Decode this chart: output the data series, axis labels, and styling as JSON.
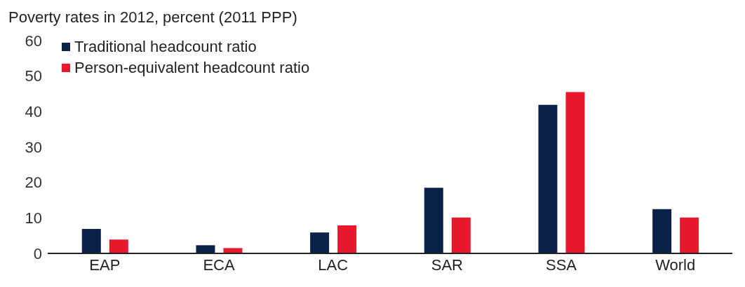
{
  "chart_data": {
    "type": "bar",
    "title": "Poverty rates in 2012, percent (2011 PPP)",
    "categories": [
      "EAP",
      "ECA",
      "LAC",
      "SAR",
      "SSA",
      "World"
    ],
    "series": [
      {
        "name": "Traditional headcount ratio",
        "color": "#0a2149",
        "values": [
          6.9,
          2.3,
          5.9,
          18.5,
          41.9,
          12.5
        ]
      },
      {
        "name": "Person-equivalent headcount ratio",
        "color": "#e8192c",
        "values": [
          3.9,
          1.5,
          7.9,
          10.1,
          45.5,
          10.1
        ]
      }
    ],
    "ylim": [
      0,
      60
    ],
    "yticks": [
      0,
      10,
      20,
      30,
      40,
      50,
      60
    ],
    "grid": false,
    "legend": "top left"
  }
}
